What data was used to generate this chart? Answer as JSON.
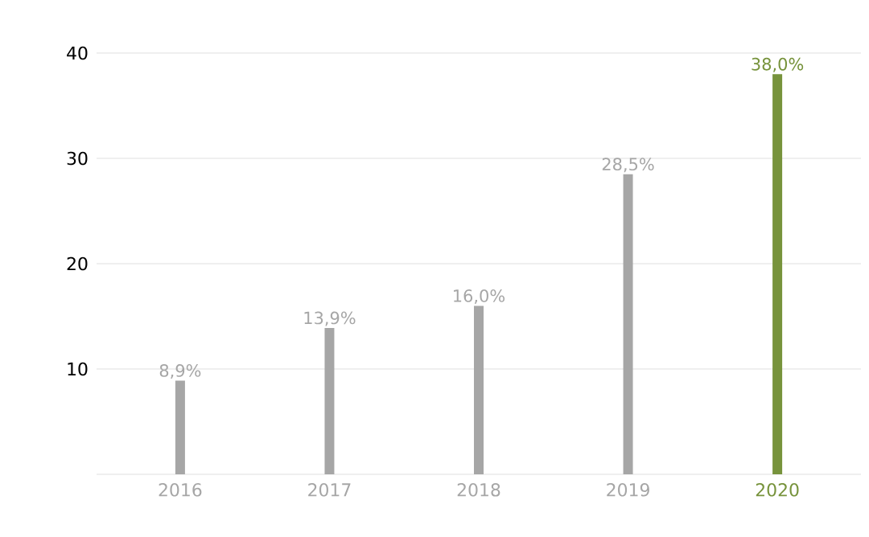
{
  "chart_data": {
    "type": "bar",
    "categories": [
      "2016",
      "2017",
      "2018",
      "2019",
      "2020"
    ],
    "values": [
      8.9,
      13.9,
      16.0,
      28.5,
      38.0
    ],
    "value_labels": [
      "8,9%",
      "13,9%",
      "16,0%",
      "28,5%",
      "38,0%"
    ],
    "colors": [
      "#a6a6a6",
      "#a6a6a6",
      "#a6a6a6",
      "#a6a6a6",
      "#77933c"
    ],
    "ylim": [
      0,
      40
    ],
    "yticks": [
      {
        "value": 0,
        "label": null
      },
      10,
      20,
      30,
      40
    ],
    "grid": "y"
  }
}
